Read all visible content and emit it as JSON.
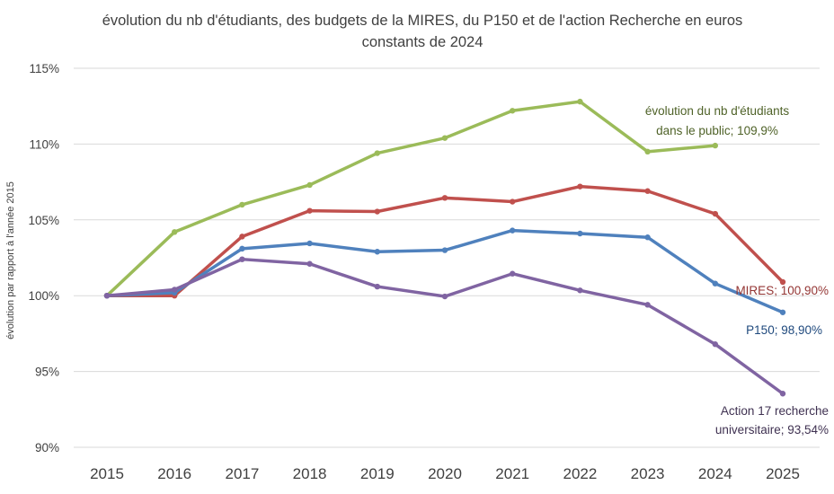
{
  "chart_data": {
    "type": "line",
    "title_line1": "évolution du nb d'étudiants, des budgets de la MIRES, du P150 et de l'action Recherche en euros",
    "title_line2": "constants de 2024",
    "ylabel": "évolution par rapport à l'année 2015",
    "xlabel": "",
    "ylim": [
      90,
      115
    ],
    "yticks": [
      90,
      95,
      100,
      105,
      110,
      115
    ],
    "ytick_labels": [
      "90%",
      "95%",
      "100%",
      "105%",
      "110%",
      "115%"
    ],
    "categories": [
      "2015",
      "2016",
      "2017",
      "2018",
      "2019",
      "2020",
      "2021",
      "2022",
      "2023",
      "2024",
      "2025"
    ],
    "grid": true,
    "series": [
      {
        "name": "évolution du nb d'étudiants dans le public",
        "color": "#9bbb59",
        "values": [
          100.0,
          104.2,
          106.0,
          107.3,
          109.4,
          110.4,
          112.2,
          112.8,
          109.5,
          109.9,
          null
        ],
        "annotation": [
          "évolution du nb d'étudiants",
          "dans le public; 109,9%"
        ],
        "annotation_color": "#4f6228"
      },
      {
        "name": "MIRES",
        "color": "#c0504d",
        "values": [
          100.0,
          100.0,
          103.9,
          105.6,
          105.55,
          106.45,
          106.2,
          107.2,
          106.9,
          105.4,
          100.9
        ],
        "annotation": [
          "MIRES; 100,90%"
        ],
        "annotation_color": "#943634"
      },
      {
        "name": "P150",
        "color": "#4f81bd",
        "values": [
          100.0,
          100.2,
          103.1,
          103.45,
          102.9,
          103.0,
          104.3,
          104.1,
          103.85,
          100.8,
          98.9
        ],
        "annotation": [
          "P150; 98,90%"
        ],
        "annotation_color": "#1f497d"
      },
      {
        "name": "Action 17 recherche universitaire",
        "color": "#8064a2",
        "values": [
          100.0,
          100.4,
          102.4,
          102.1,
          100.6,
          99.95,
          101.45,
          100.35,
          99.4,
          96.8,
          93.54
        ],
        "annotation": [
          "Action 17 recherche",
          "universitaire; 93,54%"
        ],
        "annotation_color": "#3f3151"
      }
    ]
  }
}
